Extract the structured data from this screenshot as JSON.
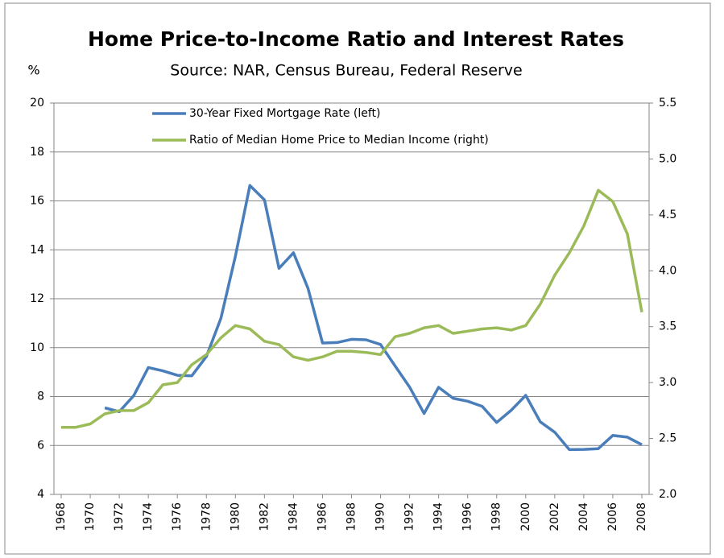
{
  "chart_data": {
    "type": "line",
    "title": "Home Price-to-Income Ratio and Interest Rates",
    "subtitle": "Source: NAR, Census Bureau, Federal Reserve",
    "y_label": "%",
    "x": [
      1968,
      1969,
      1970,
      1971,
      1972,
      1973,
      1974,
      1975,
      1976,
      1977,
      1978,
      1979,
      1980,
      1981,
      1982,
      1983,
      1984,
      1985,
      1986,
      1987,
      1988,
      1989,
      1990,
      1991,
      1992,
      1993,
      1994,
      1995,
      1996,
      1997,
      1998,
      1999,
      2000,
      2001,
      2002,
      2003,
      2004,
      2005,
      2006,
      2007,
      2008
    ],
    "series": [
      {
        "name": "30-Year Fixed Mortgage  Rate (left)",
        "color": "#4a7ebb",
        "axis": "y",
        "values": [
          null,
          null,
          null,
          7.54,
          7.38,
          8.04,
          9.19,
          9.05,
          8.87,
          8.85,
          9.64,
          11.2,
          13.74,
          16.63,
          16.04,
          13.24,
          13.88,
          12.43,
          10.19,
          10.21,
          10.34,
          10.32,
          10.13,
          9.25,
          8.39,
          7.31,
          8.38,
          7.93,
          7.81,
          7.6,
          6.94,
          7.44,
          8.05,
          6.97,
          6.54,
          5.83,
          5.84,
          5.87,
          6.41,
          6.34,
          6.03
        ]
      },
      {
        "name": "Ratio of Median Home Price to Median Income (right)",
        "color": "#9bbb59",
        "axis": "y2",
        "values": [
          2.6,
          2.6,
          2.63,
          2.72,
          2.75,
          2.75,
          2.82,
          2.98,
          3.0,
          3.16,
          3.25,
          3.4,
          3.51,
          3.48,
          3.37,
          3.34,
          3.23,
          3.2,
          3.23,
          3.28,
          3.28,
          3.27,
          3.25,
          3.41,
          3.44,
          3.49,
          3.51,
          3.44,
          3.46,
          3.48,
          3.49,
          3.47,
          3.51,
          3.7,
          3.96,
          4.16,
          4.4,
          4.72,
          4.62,
          4.33,
          3.63
        ]
      }
    ],
    "xlim": [
      1967.5,
      2008.5
    ],
    "xticks": [
      1968,
      1970,
      1972,
      1974,
      1976,
      1978,
      1980,
      1982,
      1984,
      1986,
      1988,
      1990,
      1992,
      1994,
      1996,
      1998,
      2000,
      2002,
      2004,
      2006,
      2008
    ],
    "ylim": [
      4,
      20
    ],
    "yticks": [
      4,
      6,
      8,
      10,
      12,
      14,
      16,
      18,
      20
    ],
    "y2lim": [
      2,
      5.5
    ],
    "y2ticks": [
      {
        "value": 2,
        "label": "2.0"
      },
      2.5,
      {
        "value": 3,
        "label": "3.0"
      },
      3.5,
      {
        "value": 4,
        "label": "4.0"
      },
      4.5,
      {
        "value": 5,
        "label": "5.0"
      },
      5.5
    ],
    "grid": true,
    "legend": "top-left"
  }
}
